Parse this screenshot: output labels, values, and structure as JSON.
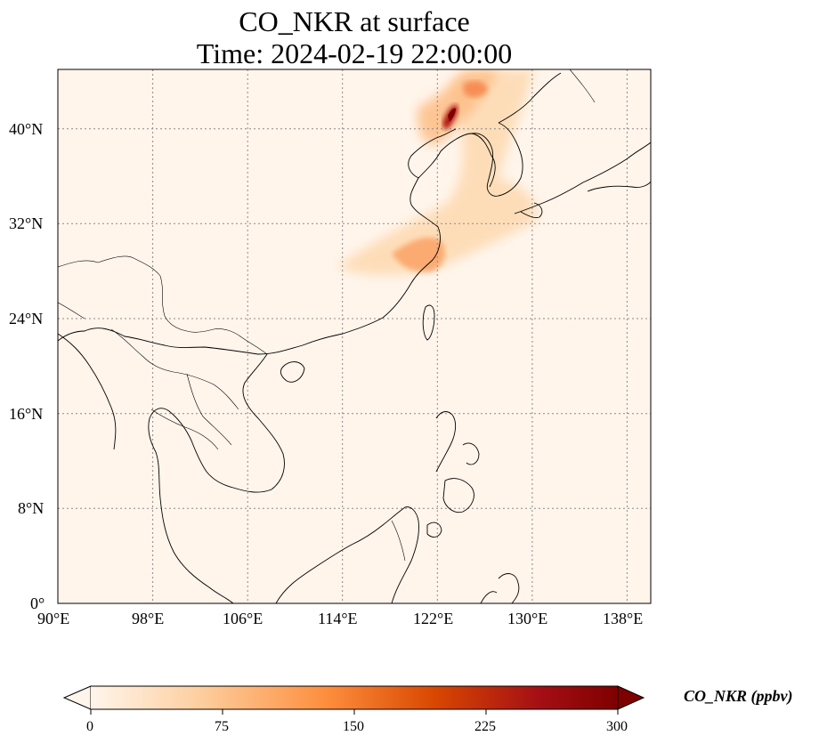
{
  "title": {
    "line1": "CO_NKR at surface",
    "line2": "Time: 2024-02-19 22:00:00"
  },
  "map": {
    "lon_ticks": [
      "90°E",
      "98°E",
      "106°E",
      "114°E",
      "122°E",
      "130°E",
      "138°E"
    ],
    "lat_ticks": [
      "0°",
      "8°N",
      "16°N",
      "24°N",
      "32°N",
      "40°N"
    ],
    "gridlines": true,
    "background_color": "#fff5eb",
    "coastline_color": "#000000"
  },
  "colorbar": {
    "label": "CO_NKR (ppbv)",
    "ticks": [
      "0",
      "75",
      "150",
      "225",
      "300"
    ],
    "colormap": [
      "#fff5eb",
      "#fdd0a2",
      "#fd8d3c",
      "#d94801",
      "#a50f15",
      "#7f0000"
    ],
    "extend": "both"
  }
}
